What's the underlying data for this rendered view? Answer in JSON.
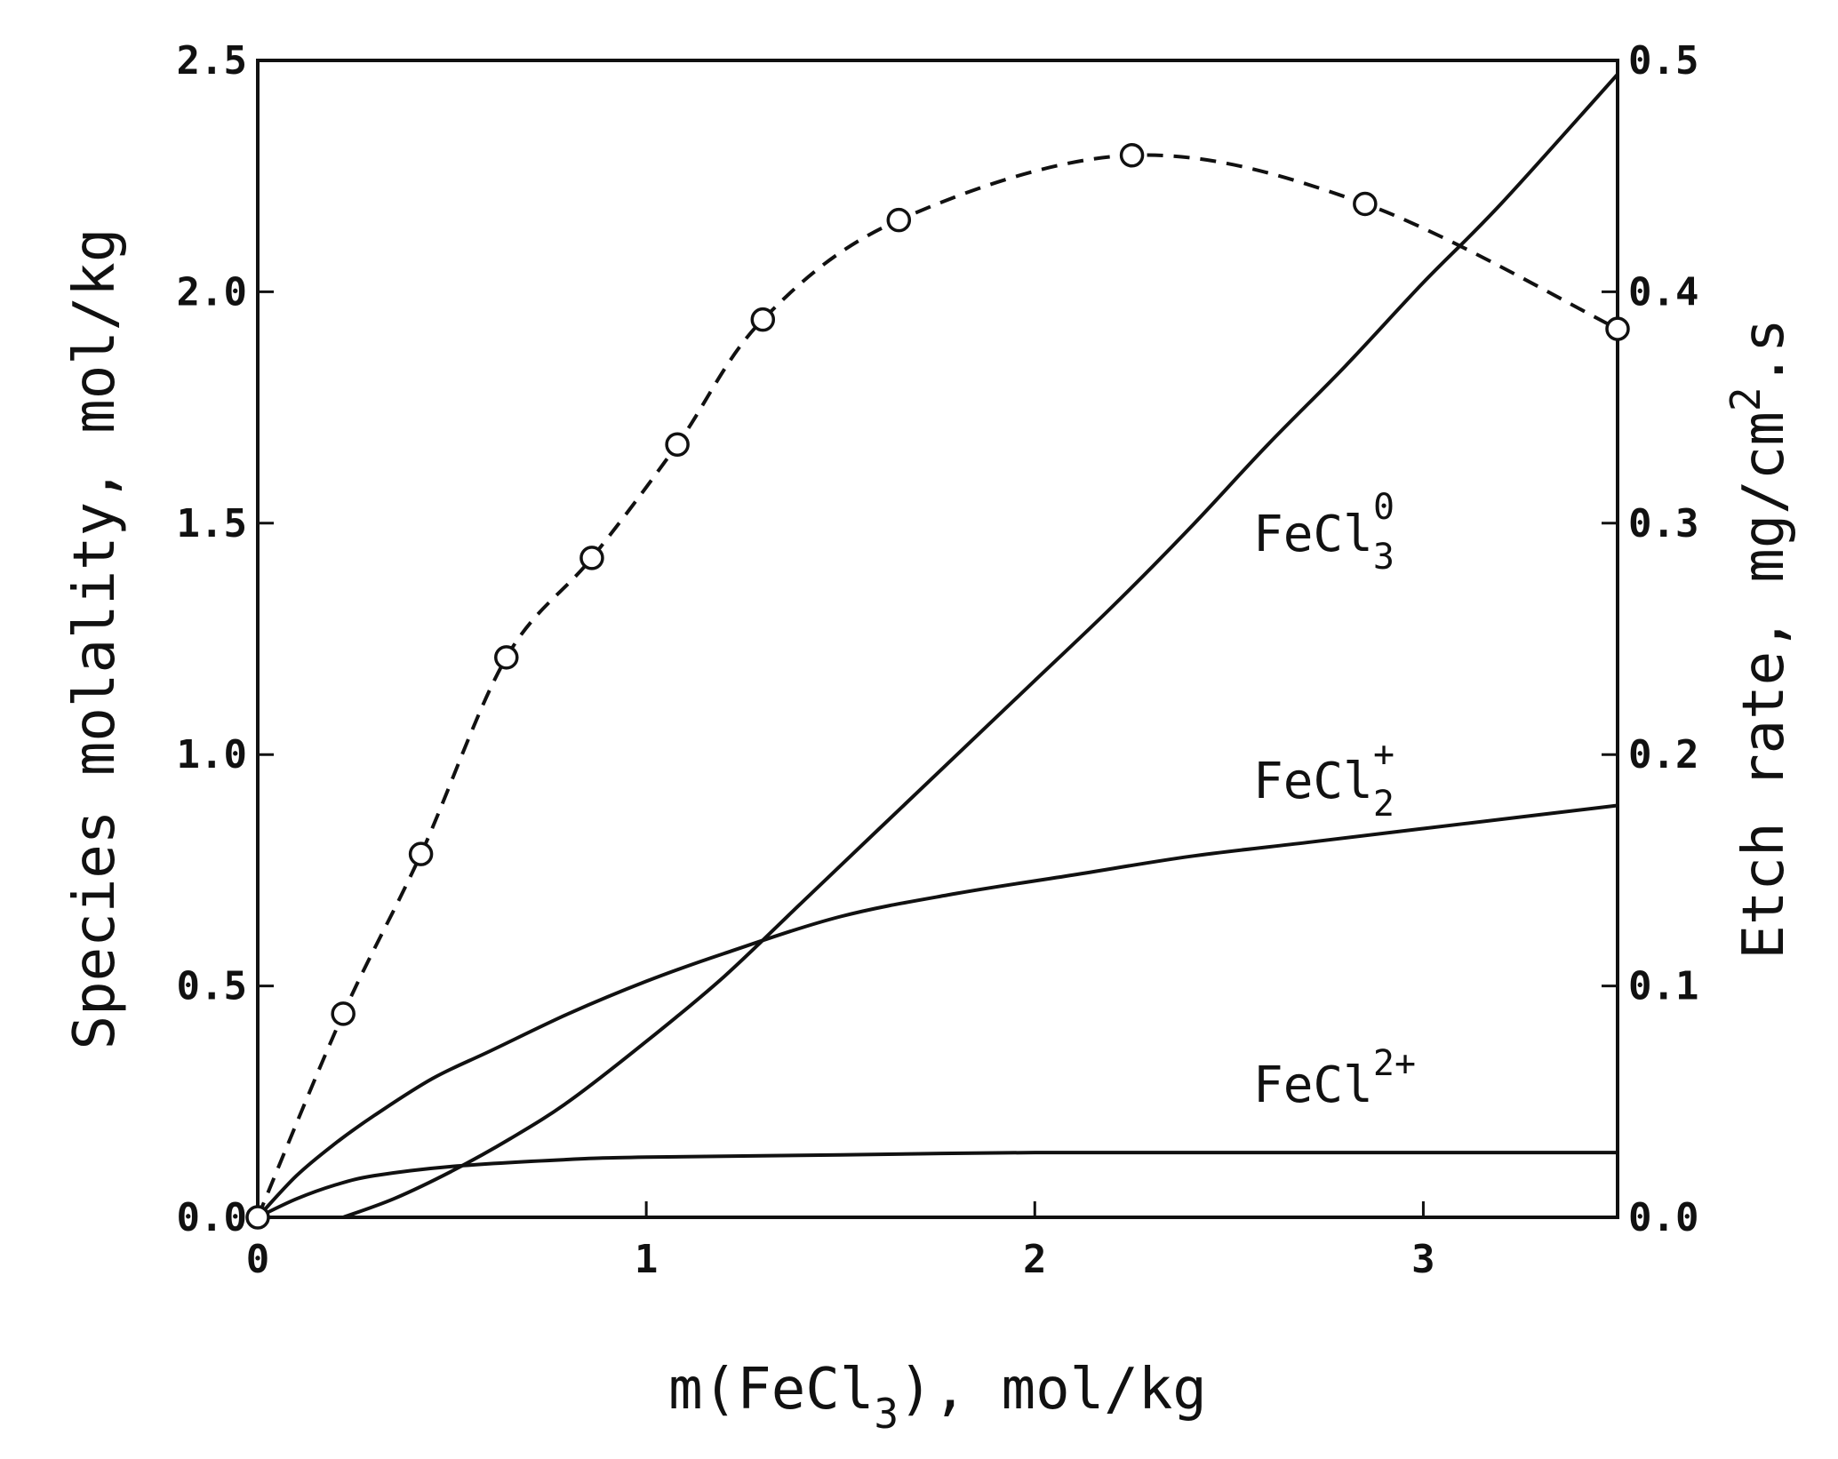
{
  "chart_data": {
    "type": "line",
    "xlabel": {
      "main": "m(FeCl",
      "sub": "3",
      "tail": "), mol/kg"
    },
    "ylabel": "Species molality, mol/kg",
    "y2label": {
      "main": "Etch rate, mg/cm",
      "sup": "2",
      "tail": ".s"
    },
    "xlim": [
      0,
      3.5
    ],
    "ylim": [
      0,
      2.5
    ],
    "y2lim": [
      0,
      0.5
    ],
    "x_ticks": [
      "0",
      "1",
      "2",
      "3"
    ],
    "y_ticks": [
      "0.0",
      "0.5",
      "1.0",
      "1.5",
      "2.0",
      "2.5"
    ],
    "y2_ticks": [
      "0.0",
      "0.1",
      "0.2",
      "0.3",
      "0.4",
      "0.5"
    ],
    "grid": false,
    "series": [
      {
        "name": {
          "base": "FeCl",
          "sub": "3",
          "sup": "0"
        },
        "style": "solid",
        "axis": "left",
        "x": [
          0.22,
          0.35,
          0.5,
          0.65,
          0.8,
          1.0,
          1.2,
          1.4,
          1.6,
          1.8,
          2.0,
          2.2,
          2.4,
          2.6,
          2.8,
          3.0,
          3.2,
          3.5
        ],
        "y": [
          0.0,
          0.04,
          0.1,
          0.17,
          0.25,
          0.38,
          0.52,
          0.68,
          0.84,
          1.0,
          1.16,
          1.32,
          1.49,
          1.67,
          1.84,
          2.02,
          2.19,
          2.47
        ]
      },
      {
        "name": {
          "base": "FeCl",
          "sub": "2",
          "sup": "+"
        },
        "style": "solid",
        "axis": "left",
        "x": [
          0.0,
          0.1,
          0.2,
          0.3,
          0.45,
          0.6,
          0.8,
          1.0,
          1.2,
          1.5,
          1.8,
          2.1,
          2.4,
          2.7,
          3.0,
          3.3,
          3.5
        ],
        "y": [
          0.0,
          0.09,
          0.16,
          0.22,
          0.3,
          0.36,
          0.44,
          0.51,
          0.57,
          0.65,
          0.7,
          0.74,
          0.78,
          0.81,
          0.84,
          0.87,
          0.89
        ]
      },
      {
        "name": {
          "base": "FeCl",
          "sub": "",
          "sup": "2+"
        },
        "style": "solid",
        "axis": "left",
        "x": [
          0.0,
          0.1,
          0.2,
          0.3,
          0.5,
          0.8,
          1.0,
          1.5,
          2.0,
          2.5,
          3.0,
          3.5
        ],
        "y": [
          0.0,
          0.04,
          0.07,
          0.09,
          0.11,
          0.125,
          0.13,
          0.135,
          0.14,
          0.14,
          0.14,
          0.14
        ]
      },
      {
        "name": "",
        "style": "dashed",
        "axis": "right",
        "markers": "open-circle",
        "x": [
          0.0,
          0.22,
          0.42,
          0.64,
          0.86,
          1.08,
          1.3,
          1.65,
          2.25,
          2.85,
          3.5
        ],
        "y": [
          0.0,
          0.088,
          0.157,
          0.242,
          0.285,
          0.334,
          0.388,
          0.431,
          0.459,
          0.438,
          0.384
        ]
      }
    ]
  }
}
